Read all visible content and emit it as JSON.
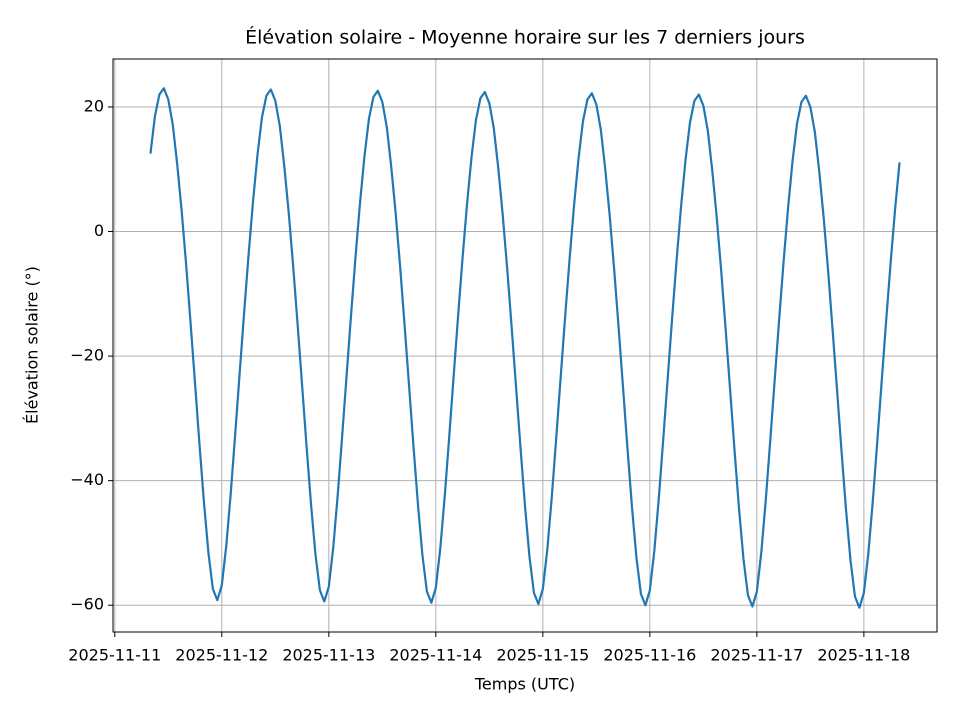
{
  "chart_data": {
    "type": "line",
    "title": "Élévation solaire - Moyenne horaire sur les 7 derniers jours",
    "x_label": "Temps (UTC)",
    "y_label": "Élévation solaire (°)",
    "x": [
      "2025-11-11 08:00",
      "2025-11-11 09:00",
      "2025-11-11 10:00",
      "2025-11-11 11:00",
      "2025-11-11 12:00",
      "2025-11-11 13:00",
      "2025-11-11 14:00",
      "2025-11-11 15:00",
      "2025-11-11 16:00",
      "2025-11-11 17:00",
      "2025-11-11 18:00",
      "2025-11-11 19:00",
      "2025-11-11 20:00",
      "2025-11-11 21:00",
      "2025-11-11 22:00",
      "2025-11-11 23:00",
      "2025-11-12 00:00",
      "2025-11-12 01:00",
      "2025-11-12 02:00",
      "2025-11-12 03:00",
      "2025-11-12 04:00",
      "2025-11-12 05:00",
      "2025-11-12 06:00",
      "2025-11-12 07:00",
      "2025-11-12 08:00",
      "2025-11-12 09:00",
      "2025-11-12 10:00",
      "2025-11-12 11:00",
      "2025-11-12 12:00",
      "2025-11-12 13:00",
      "2025-11-12 14:00",
      "2025-11-12 15:00",
      "2025-11-12 16:00",
      "2025-11-12 17:00",
      "2025-11-12 18:00",
      "2025-11-12 19:00",
      "2025-11-12 20:00",
      "2025-11-12 21:00",
      "2025-11-12 22:00",
      "2025-11-12 23:00",
      "2025-11-13 00:00",
      "2025-11-13 01:00",
      "2025-11-13 02:00",
      "2025-11-13 03:00",
      "2025-11-13 04:00",
      "2025-11-13 05:00",
      "2025-11-13 06:00",
      "2025-11-13 07:00",
      "2025-11-13 08:00",
      "2025-11-13 09:00",
      "2025-11-13 10:00",
      "2025-11-13 11:00",
      "2025-11-13 12:00",
      "2025-11-13 13:00",
      "2025-11-13 14:00",
      "2025-11-13 15:00",
      "2025-11-13 16:00",
      "2025-11-13 17:00",
      "2025-11-13 18:00",
      "2025-11-13 19:00",
      "2025-11-13 20:00",
      "2025-11-13 21:00",
      "2025-11-13 22:00",
      "2025-11-13 23:00",
      "2025-11-14 00:00",
      "2025-11-14 01:00",
      "2025-11-14 02:00",
      "2025-11-14 03:00",
      "2025-11-14 04:00",
      "2025-11-14 05:00",
      "2025-11-14 06:00",
      "2025-11-14 07:00",
      "2025-11-14 08:00",
      "2025-11-14 09:00",
      "2025-11-14 10:00",
      "2025-11-14 11:00",
      "2025-11-14 12:00",
      "2025-11-14 13:00",
      "2025-11-14 14:00",
      "2025-11-14 15:00",
      "2025-11-14 16:00",
      "2025-11-14 17:00",
      "2025-11-14 18:00",
      "2025-11-14 19:00",
      "2025-11-14 20:00",
      "2025-11-14 21:00",
      "2025-11-14 22:00",
      "2025-11-14 23:00",
      "2025-11-15 00:00",
      "2025-11-15 01:00",
      "2025-11-15 02:00",
      "2025-11-15 03:00",
      "2025-11-15 04:00",
      "2025-11-15 05:00",
      "2025-11-15 06:00",
      "2025-11-15 07:00",
      "2025-11-15 08:00",
      "2025-11-15 09:00",
      "2025-11-15 10:00",
      "2025-11-15 11:00",
      "2025-11-15 12:00",
      "2025-11-15 13:00",
      "2025-11-15 14:00",
      "2025-11-15 15:00",
      "2025-11-15 16:00",
      "2025-11-15 17:00",
      "2025-11-15 18:00",
      "2025-11-15 19:00",
      "2025-11-15 20:00",
      "2025-11-15 21:00",
      "2025-11-15 22:00",
      "2025-11-15 23:00",
      "2025-11-16 00:00",
      "2025-11-16 01:00",
      "2025-11-16 02:00",
      "2025-11-16 03:00",
      "2025-11-16 04:00",
      "2025-11-16 05:00",
      "2025-11-16 06:00",
      "2025-11-16 07:00",
      "2025-11-16 08:00",
      "2025-11-16 09:00",
      "2025-11-16 10:00",
      "2025-11-16 11:00",
      "2025-11-16 12:00",
      "2025-11-16 13:00",
      "2025-11-16 14:00",
      "2025-11-16 15:00",
      "2025-11-16 16:00",
      "2025-11-16 17:00",
      "2025-11-16 18:00",
      "2025-11-16 19:00",
      "2025-11-16 20:00",
      "2025-11-16 21:00",
      "2025-11-16 22:00",
      "2025-11-16 23:00",
      "2025-11-17 00:00",
      "2025-11-17 01:00",
      "2025-11-17 02:00",
      "2025-11-17 03:00",
      "2025-11-17 04:00",
      "2025-11-17 05:00",
      "2025-11-17 06:00",
      "2025-11-17 07:00",
      "2025-11-17 08:00",
      "2025-11-17 09:00",
      "2025-11-17 10:00",
      "2025-11-17 11:00",
      "2025-11-17 12:00",
      "2025-11-17 13:00",
      "2025-11-17 14:00",
      "2025-11-17 15:00",
      "2025-11-17 16:00",
      "2025-11-17 17:00",
      "2025-11-17 18:00",
      "2025-11-17 19:00",
      "2025-11-17 20:00",
      "2025-11-17 21:00",
      "2025-11-17 22:00",
      "2025-11-17 23:00",
      "2025-11-18 00:00",
      "2025-11-18 01:00",
      "2025-11-18 02:00",
      "2025-11-18 03:00",
      "2025-11-18 04:00",
      "2025-11-18 05:00",
      "2025-11-18 06:00",
      "2025-11-18 07:00",
      "2025-11-18 08:00"
    ],
    "series": [
      {
        "color": "#1f77b4",
        "values": [
          12.5,
          18.5,
          22.0,
          23.0,
          21.2,
          17.2,
          10.8,
          3.3,
          -5.3,
          -14.7,
          -24.4,
          -34.2,
          -43.5,
          -51.6,
          -57.4,
          -59.2,
          -56.8,
          -50.5,
          -42.1,
          -32.6,
          -22.8,
          -13.1,
          -3.8,
          4.8,
          12.3,
          18.3,
          21.8,
          22.8,
          21.0,
          17.0,
          10.6,
          3.1,
          -5.5,
          -14.9,
          -24.6,
          -34.4,
          -43.7,
          -51.8,
          -57.6,
          -59.4,
          -57.0,
          -50.7,
          -42.3,
          -32.8,
          -23.0,
          -13.3,
          -4.0,
          4.6,
          12.1,
          18.1,
          21.6,
          22.6,
          20.8,
          16.8,
          10.4,
          2.9,
          -5.7,
          -15.1,
          -24.8,
          -34.6,
          -43.9,
          -52.0,
          -57.8,
          -59.6,
          -57.2,
          -50.9,
          -42.5,
          -33.0,
          -23.2,
          -13.5,
          -4.2,
          4.4,
          11.9,
          17.9,
          21.4,
          22.4,
          20.6,
          16.6,
          10.2,
          2.7,
          -5.9,
          -15.3,
          -25.0,
          -34.8,
          -44.1,
          -52.2,
          -58.0,
          -59.8,
          -57.4,
          -51.1,
          -42.7,
          -33.2,
          -23.4,
          -13.7,
          -4.4,
          4.2,
          11.7,
          17.7,
          21.2,
          22.2,
          20.4,
          16.4,
          10.0,
          2.5,
          -6.1,
          -15.5,
          -25.2,
          -35.0,
          -44.3,
          -52.4,
          -58.2,
          -60.0,
          -57.6,
          -51.3,
          -42.9,
          -33.4,
          -23.6,
          -13.9,
          -4.6,
          4.0,
          11.5,
          17.5,
          21.0,
          22.0,
          20.2,
          16.2,
          9.8,
          2.3,
          -6.3,
          -15.7,
          -25.4,
          -35.2,
          -44.5,
          -52.6,
          -58.4,
          -60.2,
          -57.8,
          -51.5,
          -43.1,
          -33.6,
          -23.8,
          -14.1,
          -4.8,
          3.8,
          11.3,
          17.3,
          20.8,
          21.8,
          20.0,
          16.0,
          9.6,
          2.1,
          -6.5,
          -15.9,
          -25.6,
          -35.4,
          -44.7,
          -52.8,
          -58.6,
          -60.4,
          -58.0,
          -51.7,
          -43.3,
          -33.8,
          -24.0,
          -14.3,
          -5.0,
          3.6,
          11.1
        ]
      }
    ],
    "xlim": [
      "2025-11-10 23:36",
      "2025-11-18 16:24"
    ],
    "xticks": [
      "2025-11-11",
      "2025-11-12",
      "2025-11-13",
      "2025-11-14",
      "2025-11-15",
      "2025-11-16",
      "2025-11-17",
      "2025-11-18"
    ],
    "ylim": [
      -64.3,
      27.7
    ],
    "yticks": [
      {
        "value": -60,
        "label": "−60"
      },
      {
        "value": -40,
        "label": "−40"
      },
      {
        "value": -20,
        "label": "−20"
      },
      0,
      20
    ],
    "grid": true
  }
}
